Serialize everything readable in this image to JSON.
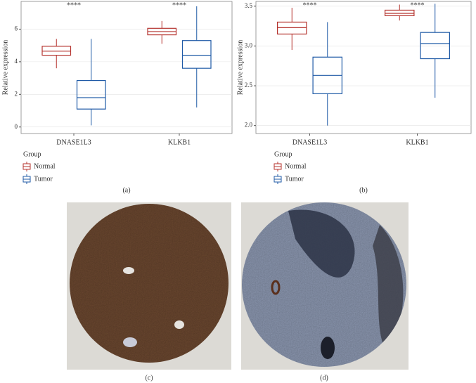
{
  "chart_data": [
    {
      "type": "box",
      "panel_label": "(a)",
      "y_label": "Relative expression",
      "categories": [
        "DNASE1L3",
        "KLKB1"
      ],
      "annotations": [
        "****",
        "****"
      ],
      "legend_title": "Group",
      "ylim": [
        -0.4,
        7.7
      ],
      "yticks": [
        0,
        2,
        4,
        6
      ],
      "series": [
        {
          "name": "Normal",
          "color": "#b5332e",
          "min": [
            3.6,
            5.1
          ],
          "q1": [
            4.4,
            5.65
          ],
          "median": [
            4.65,
            5.85
          ],
          "q3": [
            4.95,
            6.05
          ],
          "max": [
            5.4,
            6.5
          ]
        },
        {
          "name": "Tumor",
          "color": "#1f5aa6",
          "min": [
            0.1,
            1.2
          ],
          "q1": [
            1.1,
            3.6
          ],
          "median": [
            1.8,
            4.4
          ],
          "q3": [
            2.85,
            5.3
          ],
          "max": [
            5.4,
            7.4
          ]
        }
      ]
    },
    {
      "type": "box",
      "panel_label": "(b)",
      "y_label": "Relative expression",
      "categories": [
        "DNASE1L3",
        "KLKB1"
      ],
      "annotations": [
        "****",
        "****"
      ],
      "legend_title": "Group",
      "ylim": [
        1.9,
        3.56
      ],
      "yticks": [
        {
          "value": 2,
          "label": "2.0"
        },
        {
          "value": 2.5,
          "label": "2.5"
        },
        {
          "value": 3,
          "label": "3.0"
        },
        {
          "value": 3.5,
          "label": "3.5"
        }
      ],
      "series": [
        {
          "name": "Normal",
          "color": "#b5332e",
          "min": [
            2.95,
            3.32
          ],
          "q1": [
            3.15,
            3.38
          ],
          "median": [
            3.23,
            3.41
          ],
          "q3": [
            3.3,
            3.45
          ],
          "max": [
            3.48,
            3.52
          ]
        },
        {
          "name": "Tumor",
          "color": "#1f5aa6",
          "min": [
            2.0,
            2.35
          ],
          "q1": [
            2.4,
            2.84
          ],
          "median": [
            2.63,
            3.03
          ],
          "q3": [
            2.86,
            3.17
          ],
          "max": [
            3.3,
            3.53
          ]
        }
      ]
    }
  ],
  "images": [
    {
      "label": "(c)"
    },
    {
      "label": "(d)"
    }
  ]
}
